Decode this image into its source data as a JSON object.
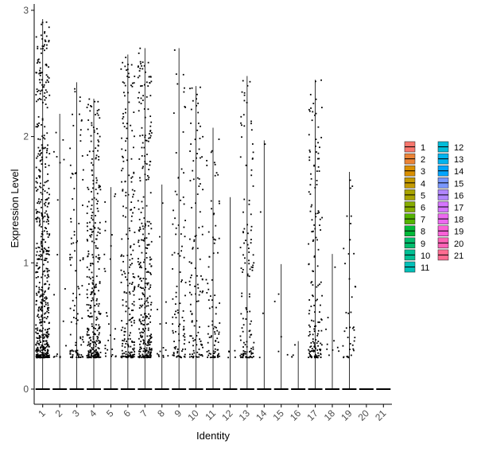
{
  "chart_data": {
    "type": "violin",
    "xlabel": "Identity",
    "ylabel": "Expression Level",
    "ylim": [
      -0.12,
      3.05
    ],
    "yticks": [
      0,
      1,
      2,
      3
    ],
    "grid": false,
    "legend_position": "right",
    "categories": [
      "1",
      "2",
      "3",
      "4",
      "5",
      "6",
      "7",
      "8",
      "9",
      "10",
      "11",
      "12",
      "13",
      "14",
      "15",
      "16",
      "17",
      "18",
      "19",
      "20",
      "21"
    ],
    "colors": [
      "#F8766D",
      "#EB8335",
      "#DA8F00",
      "#C49A00",
      "#A9A400",
      "#86AC00",
      "#53B400",
      "#00BA38",
      "#00BE6D",
      "#00C094",
      "#00C0B8",
      "#00BCD8",
      "#00B4EF",
      "#00A5FF",
      "#7997FF",
      "#B186FF",
      "#D575FE",
      "#EC69EF",
      "#FB61D7",
      "#FF63B6",
      "#FF6C91"
    ],
    "legend_entries": [
      "1",
      "2",
      "3",
      "4",
      "5",
      "6",
      "7",
      "8",
      "9",
      "10",
      "11",
      "12",
      "13",
      "14",
      "15",
      "16",
      "17",
      "18",
      "19",
      "20",
      "21"
    ],
    "max_expression": [
      2.93,
      2.18,
      2.43,
      2.3,
      1.6,
      2.65,
      2.7,
      1.62,
      2.7,
      2.4,
      2.07,
      1.52,
      2.48,
      1.97,
      0.99,
      0.38,
      2.45,
      1.07,
      1.72,
      0.0,
      0.0
    ],
    "nonzero_points": [
      560,
      18,
      100,
      320,
      28,
      220,
      330,
      15,
      100,
      120,
      90,
      5,
      130,
      4,
      5,
      4,
      170,
      10,
      40,
      0,
      0
    ]
  }
}
